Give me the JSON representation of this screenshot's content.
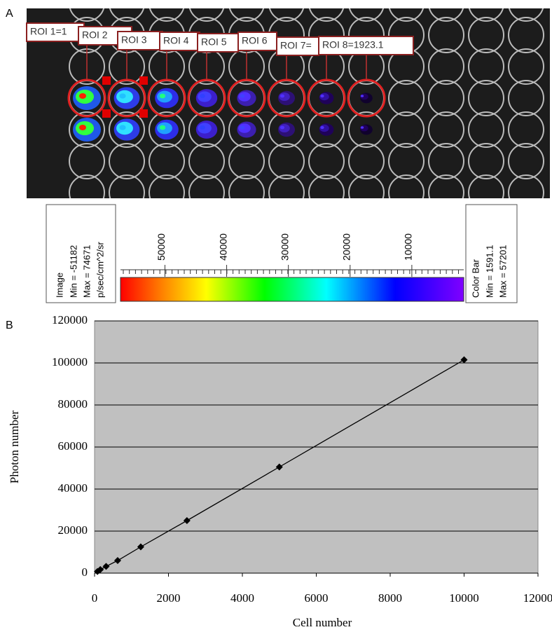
{
  "panel_labels": [
    "A",
    "B"
  ],
  "roi_labels": [
    "ROI 1=1",
    "ROI 2",
    "ROI 3",
    "ROI 4",
    "ROI 5",
    "ROI 6",
    "ROI 7=",
    "ROI 8=1923.1"
  ],
  "image_info": {
    "title": "Image",
    "min": "Min = -51182",
    "max": "Max = 74671",
    "unit": "p/sec/cm^2/sr"
  },
  "color_bar": {
    "title": "Color Bar",
    "min": {
      "value": 1591.1,
      "label": "Min = 1591.1"
    },
    "max": {
      "value": 57201,
      "label": "Max = 57201"
    },
    "ticks": [
      50000,
      40000,
      30000,
      20000,
      10000
    ]
  },
  "chart_data": {
    "type": "line",
    "markers": true,
    "x_label": "Cell number",
    "y_label": "Photon number",
    "x": [
      78,
      156,
      312,
      625,
      1250,
      2500,
      5000,
      10000
    ],
    "values": [
      800,
      1700,
      3200,
      6000,
      12500,
      25000,
      50500,
      101500
    ],
    "color": "#000000",
    "background": "#c0c0c0",
    "xlim": [
      0,
      12000
    ],
    "xticks": [
      0,
      2000,
      4000,
      6000,
      8000,
      10000,
      12000
    ],
    "ylim": [
      0,
      120000
    ],
    "yticks": [
      0,
      20000,
      40000,
      60000,
      80000,
      100000,
      120000
    ],
    "grid": true
  }
}
